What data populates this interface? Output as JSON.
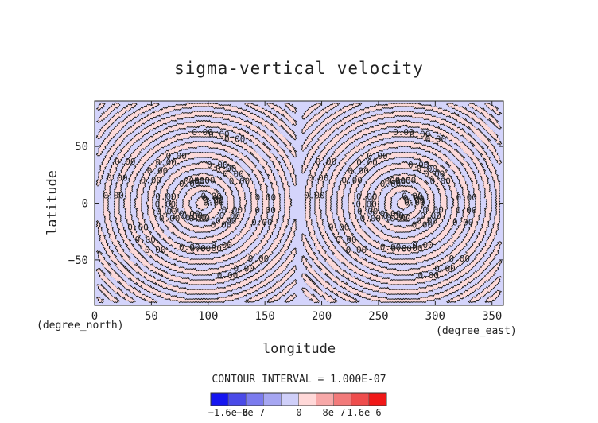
{
  "chart_data": {
    "type": "heatmap",
    "title": "sigma-vertical velocity",
    "xlabel": "longitude",
    "ylabel": "latitude",
    "x_unit_label": "(degree_east)",
    "y_unit_label": "(degree_north)",
    "xlim": [
      0,
      360
    ],
    "ylim": [
      -90,
      90
    ],
    "x_ticks": [
      0,
      50,
      100,
      150,
      200,
      250,
      300,
      350
    ],
    "y_ticks": [
      -50,
      0,
      50
    ],
    "grid": false,
    "contour_interval_text": "CONTOUR INTERVAL = 1.000E-07",
    "contour_label": "0.00",
    "contour_label_count": 94,
    "vortex_centers": [
      {
        "lon": 95,
        "lat": 0
      },
      {
        "lon": 272,
        "lat": 0
      }
    ],
    "colorbar": {
      "colors": [
        "#1515f0",
        "#4a4ae8",
        "#7b7bee",
        "#a6a6f2",
        "#cfcff9",
        "#ffd8d8",
        "#f7a8a8",
        "#f27a7a",
        "#ef4d4d",
        "#f01818"
      ],
      "tick_labels": [
        "-1.6e-6",
        "-8e-7",
        "0",
        "8e-7",
        "1.6e-6"
      ]
    },
    "colors": {
      "negative_fill": "#d4d4fb",
      "positive_fill": "#fcd9d9",
      "contour_line": "#1a1a1a"
    }
  }
}
